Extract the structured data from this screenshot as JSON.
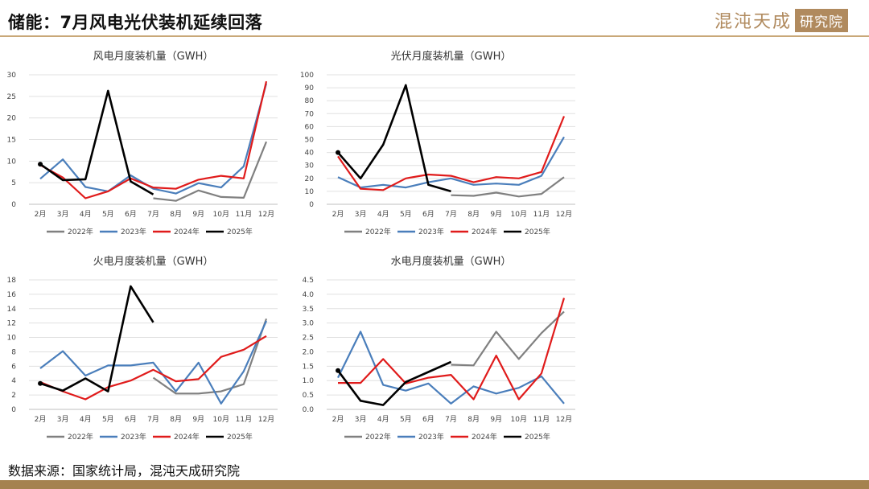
{
  "page": {
    "title": "储能：7月风电光伏装机延续回落",
    "logo_main": "混沌天成",
    "logo_box": "研究院",
    "source": "数据来源：国家统计局，混沌天成研究院"
  },
  "colors": {
    "2022年": "#808080",
    "2023年": "#4a7ebb",
    "2024年": "#e01b1b",
    "2025年": "#000000"
  },
  "chart_data": [
    {
      "type": "line",
      "title": "风电月度装机量（GWH）",
      "categories": [
        "2月",
        "3月",
        "4月",
        "5月",
        "6月",
        "7月",
        "8月",
        "9月",
        "10月",
        "11月",
        "12月"
      ],
      "ylim": [
        0,
        30
      ],
      "yticks": [
        0,
        5,
        10,
        15,
        20,
        25,
        30
      ],
      "grid": true,
      "legend": "bottom",
      "series": [
        {
          "name": "2022年",
          "values": [
            null,
            null,
            null,
            null,
            null,
            1.4,
            0.8,
            3.2,
            1.7,
            1.5,
            14.5
          ]
        },
        {
          "name": "2023年",
          "values": [
            5.9,
            10.4,
            4.0,
            3.0,
            6.7,
            3.6,
            2.5,
            4.9,
            3.9,
            8.8,
            28.0
          ]
        },
        {
          "name": "2024年",
          "values": [
            9.1,
            6.2,
            1.4,
            3.0,
            6.0,
            3.9,
            3.6,
            5.7,
            6.6,
            6.0,
            28.5
          ]
        },
        {
          "name": "2025年",
          "values": [
            9.3,
            5.6,
            5.8,
            26.3,
            5.3,
            2.3,
            null,
            null,
            null,
            null,
            null
          ]
        }
      ]
    },
    {
      "type": "line",
      "title": "光伏月度装机量（GWH）",
      "categories": [
        "2月",
        "3月",
        "4月",
        "5月",
        "6月",
        "7月",
        "8月",
        "9月",
        "10月",
        "11月",
        "12月"
      ],
      "ylim": [
        0,
        100
      ],
      "yticks": [
        0,
        10,
        20,
        30,
        40,
        50,
        60,
        70,
        80,
        90,
        100
      ],
      "grid": true,
      "legend": "bottom",
      "series": [
        {
          "name": "2022年",
          "values": [
            null,
            null,
            null,
            null,
            null,
            7,
            6.5,
            9,
            6,
            8,
            21
          ]
        },
        {
          "name": "2023年",
          "values": [
            21,
            13,
            15,
            13,
            17,
            20,
            15,
            16,
            15,
            22,
            52
          ]
        },
        {
          "name": "2024年",
          "values": [
            37,
            12,
            11,
            20,
            23,
            22,
            17,
            21,
            20,
            25,
            68
          ]
        },
        {
          "name": "2025年",
          "values": [
            40,
            20,
            46,
            92,
            15,
            10,
            null,
            null,
            null,
            null,
            null
          ]
        }
      ]
    },
    {
      "type": "line",
      "title": "火电月度装机量（GWH）",
      "categories": [
        "2月",
        "3月",
        "4月",
        "5月",
        "6月",
        "7月",
        "8月",
        "9月",
        "10月",
        "11月",
        "12月"
      ],
      "ylim": [
        0,
        18
      ],
      "yticks": [
        0,
        2,
        4,
        6,
        8,
        10,
        12,
        14,
        16,
        18
      ],
      "grid": true,
      "legend": "bottom",
      "series": [
        {
          "name": "2022年",
          "values": [
            null,
            null,
            null,
            null,
            null,
            4.4,
            2.2,
            2.2,
            2.5,
            3.5,
            12.6
          ]
        },
        {
          "name": "2023年",
          "values": [
            5.7,
            8.1,
            4.7,
            6.1,
            6.1,
            6.5,
            2.5,
            6.5,
            0.8,
            5.3,
            12.3
          ]
        },
        {
          "name": "2024年",
          "values": [
            3.8,
            2.5,
            1.4,
            3.1,
            4.0,
            5.5,
            3.9,
            4.2,
            7.3,
            8.3,
            10.2
          ]
        },
        {
          "name": "2025年",
          "values": [
            3.6,
            2.6,
            4.3,
            2.5,
            17.1,
            12.1,
            null,
            null,
            null,
            null,
            null
          ]
        }
      ]
    },
    {
      "type": "line",
      "title": "水电月度装机量（GWH）",
      "categories": [
        "2月",
        "3月",
        "4月",
        "5月",
        "6月",
        "7月",
        "8月",
        "9月",
        "10月",
        "11月",
        "12月"
      ],
      "ylim": [
        0,
        4.5
      ],
      "yticks": [
        "0.0",
        "0.5",
        "1.0",
        "1.5",
        "2.0",
        "2.5",
        "3.0",
        "3.5",
        "4.0",
        "4.5"
      ],
      "grid": true,
      "legend": "bottom",
      "series": [
        {
          "name": "2022年",
          "values": [
            null,
            null,
            null,
            null,
            null,
            1.55,
            1.53,
            2.7,
            1.75,
            2.65,
            3.4
          ]
        },
        {
          "name": "2023年",
          "values": [
            1.1,
            2.7,
            0.85,
            0.65,
            0.9,
            0.2,
            0.8,
            0.55,
            0.75,
            1.15,
            0.2
          ]
        },
        {
          "name": "2024年",
          "values": [
            0.92,
            0.92,
            1.75,
            0.9,
            1.1,
            1.2,
            0.35,
            1.87,
            0.35,
            1.25,
            3.87
          ]
        },
        {
          "name": "2025年",
          "values": [
            1.35,
            0.3,
            0.15,
            0.95,
            1.3,
            1.65,
            null,
            null,
            null,
            null,
            null
          ]
        }
      ]
    }
  ]
}
